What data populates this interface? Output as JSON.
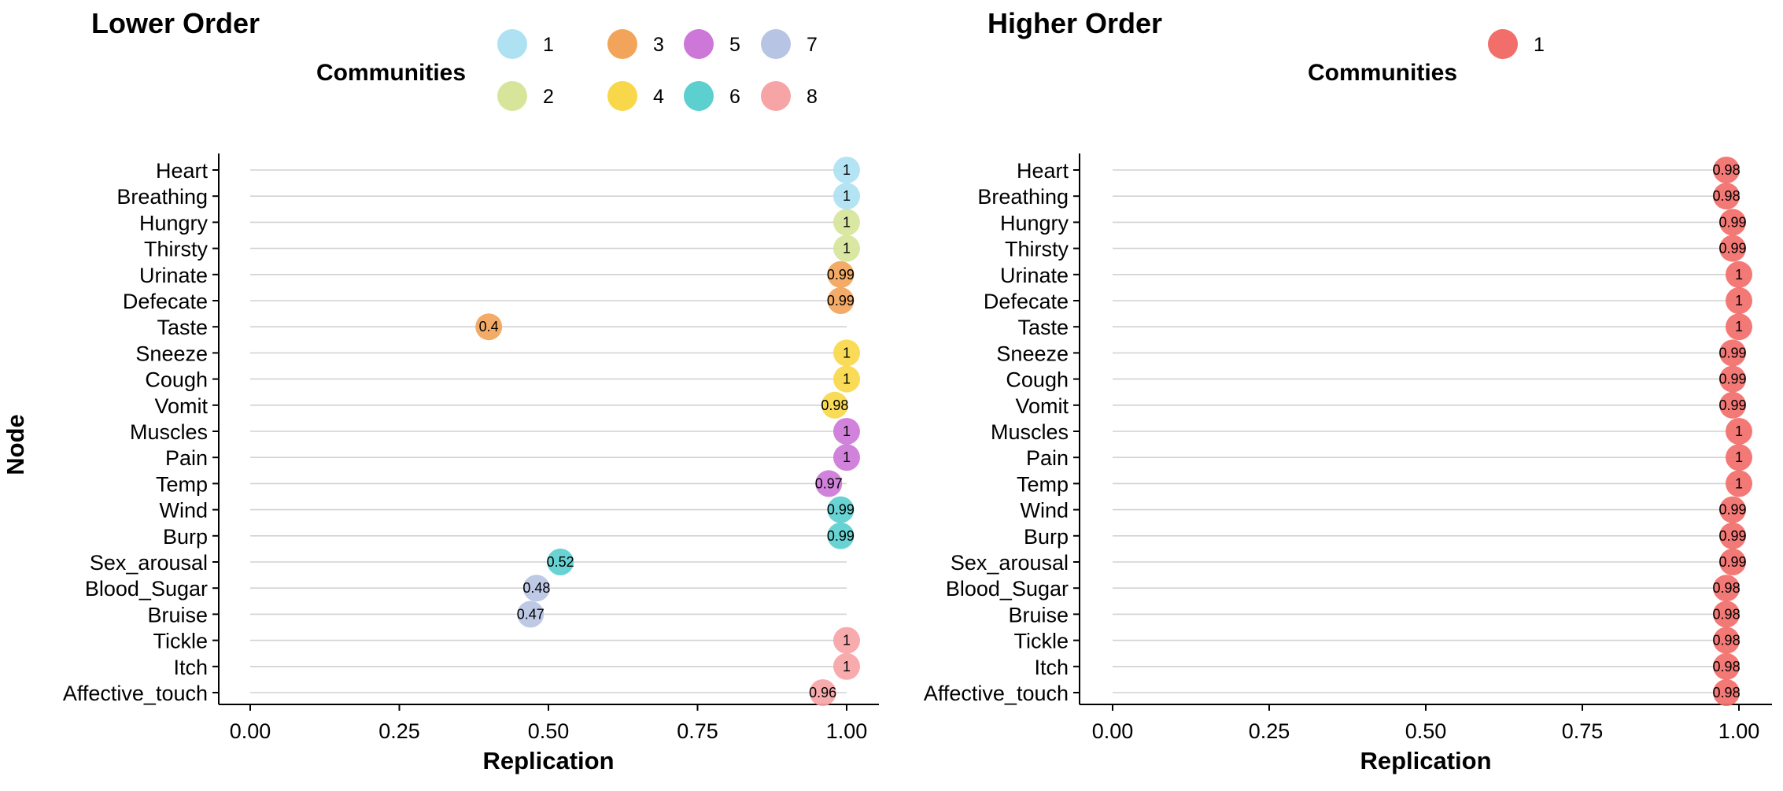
{
  "chart_data": [
    {
      "type": "scatter",
      "title": "Lower Order",
      "xlabel": "Replication",
      "ylabel": "Node",
      "xlim": [
        0,
        1
      ],
      "x_ticks": [
        "0.00",
        "0.25",
        "0.50",
        "0.75",
        "1.00"
      ],
      "x_tick_values": [
        0,
        0.25,
        0.5,
        0.75,
        1.0
      ],
      "grid": "horizontal",
      "legend": {
        "title": "Communities",
        "position": "top",
        "entries": [
          {
            "label": "1",
            "color": "#aee2f2"
          },
          {
            "label": "2",
            "color": "#d6e59a"
          },
          {
            "label": "3",
            "color": "#f2a55a"
          },
          {
            "label": "4",
            "color": "#f8d84a"
          },
          {
            "label": "5",
            "color": "#cd78d8"
          },
          {
            "label": "6",
            "color": "#5ccfcf"
          },
          {
            "label": "7",
            "color": "#b8c4e4"
          },
          {
            "label": "8",
            "color": "#f7a4a6"
          }
        ]
      },
      "nodes": [
        "Heart",
        "Breathing",
        "Hungry",
        "Thirsty",
        "Urinate",
        "Defecate",
        "Taste",
        "Sneeze",
        "Cough",
        "Vomit",
        "Muscles",
        "Pain",
        "Temp",
        "Wind",
        "Burp",
        "Sex_arousal",
        "Blood_Sugar",
        "Bruise",
        "Tickle",
        "Itch",
        "Affective_touch"
      ],
      "values": [
        1.0,
        1.0,
        1.0,
        1.0,
        0.99,
        0.99,
        0.4,
        1.0,
        1.0,
        0.98,
        1.0,
        1.0,
        0.97,
        0.99,
        0.99,
        0.52,
        0.48,
        0.47,
        1.0,
        1.0,
        0.96
      ],
      "value_labels": [
        "1",
        "1",
        "1",
        "1",
        "0.99",
        "0.99",
        "0.4",
        "1",
        "1",
        "0.98",
        "1",
        "1",
        "0.97",
        "0.99",
        "0.99",
        "0.52",
        "0.48",
        "0.47",
        "1",
        "1",
        "0.96"
      ],
      "communities": [
        "1",
        "1",
        "2",
        "2",
        "3",
        "3",
        "3",
        "4",
        "4",
        "4",
        "5",
        "5",
        "5",
        "6",
        "6",
        "6",
        "7",
        "7",
        "8",
        "8",
        "8"
      ]
    },
    {
      "type": "scatter",
      "title": "Higher Order",
      "xlabel": "Replication",
      "ylabel": "",
      "xlim": [
        0,
        1
      ],
      "x_ticks": [
        "0.00",
        "0.25",
        "0.50",
        "0.75",
        "1.00"
      ],
      "x_tick_values": [
        0,
        0.25,
        0.5,
        0.75,
        1.0
      ],
      "grid": "horizontal",
      "legend": {
        "title": "Communities",
        "position": "top",
        "entries": [
          {
            "label": "1",
            "color": "#f26e6a"
          }
        ]
      },
      "nodes": [
        "Heart",
        "Breathing",
        "Hungry",
        "Thirsty",
        "Urinate",
        "Defecate",
        "Taste",
        "Sneeze",
        "Cough",
        "Vomit",
        "Muscles",
        "Pain",
        "Temp",
        "Wind",
        "Burp",
        "Sex_arousal",
        "Blood_Sugar",
        "Bruise",
        "Tickle",
        "Itch",
        "Affective_touch"
      ],
      "values": [
        0.98,
        0.98,
        0.99,
        0.99,
        1.0,
        1.0,
        1.0,
        0.99,
        0.99,
        0.99,
        1.0,
        1.0,
        1.0,
        0.99,
        0.99,
        0.99,
        0.98,
        0.98,
        0.98,
        0.98,
        0.98
      ],
      "value_labels": [
        "0.98",
        "0.98",
        "0.99",
        "0.99",
        "1",
        "1",
        "1",
        "0.99",
        "0.99",
        "0.99",
        "1",
        "1",
        "1",
        "0.99",
        "0.99",
        "0.99",
        "0.98",
        "0.98",
        "0.98",
        "0.98",
        "0.98"
      ],
      "communities": [
        "1",
        "1",
        "1",
        "1",
        "1",
        "1",
        "1",
        "1",
        "1",
        "1",
        "1",
        "1",
        "1",
        "1",
        "1",
        "1",
        "1",
        "1",
        "1",
        "1",
        "1"
      ]
    }
  ]
}
